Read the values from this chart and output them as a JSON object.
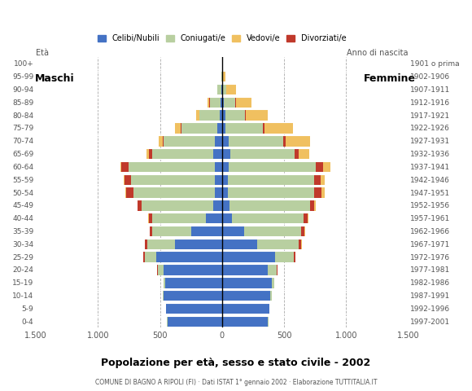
{
  "age_groups": [
    "0-4",
    "5-9",
    "10-14",
    "15-19",
    "20-24",
    "25-29",
    "30-34",
    "35-39",
    "40-44",
    "45-49",
    "50-54",
    "55-59",
    "60-64",
    "65-69",
    "70-74",
    "75-79",
    "80-84",
    "85-89",
    "90-94",
    "95-99",
    "100+"
  ],
  "birth_years": [
    "1997-2001",
    "1992-1996",
    "1987-1991",
    "1982-1986",
    "1977-1981",
    "1972-1976",
    "1967-1971",
    "1962-1966",
    "1957-1961",
    "1952-1956",
    "1947-1951",
    "1942-1946",
    "1937-1941",
    "1932-1936",
    "1927-1931",
    "1922-1926",
    "1917-1921",
    "1912-1916",
    "1907-1911",
    "1902-1906",
    "1901 o prima"
  ],
  "males": {
    "celibe": [
      440,
      450,
      470,
      460,
      470,
      530,
      380,
      250,
      130,
      70,
      55,
      55,
      60,
      70,
      60,
      35,
      20,
      10,
      5,
      0,
      0
    ],
    "coniugato": [
      2,
      3,
      5,
      10,
      50,
      90,
      220,
      310,
      430,
      580,
      660,
      680,
      690,
      490,
      410,
      290,
      160,
      90,
      30,
      5,
      0
    ],
    "vedovo": [
      0,
      0,
      0,
      0,
      1,
      2,
      2,
      2,
      3,
      3,
      5,
      5,
      10,
      20,
      30,
      50,
      25,
      15,
      5,
      0,
      0
    ],
    "divorziato": [
      0,
      0,
      0,
      3,
      5,
      15,
      20,
      20,
      30,
      30,
      60,
      50,
      60,
      30,
      10,
      5,
      5,
      5,
      0,
      0,
      0
    ]
  },
  "females": {
    "nubile": [
      370,
      380,
      390,
      400,
      370,
      430,
      280,
      180,
      80,
      60,
      50,
      45,
      55,
      65,
      55,
      30,
      25,
      15,
      5,
      0,
      0
    ],
    "coniugata": [
      2,
      4,
      8,
      20,
      70,
      150,
      340,
      460,
      580,
      650,
      690,
      700,
      700,
      520,
      440,
      300,
      160,
      90,
      30,
      5,
      0
    ],
    "vedova": [
      0,
      0,
      0,
      1,
      2,
      2,
      3,
      5,
      8,
      15,
      25,
      30,
      60,
      90,
      200,
      230,
      180,
      130,
      80,
      20,
      5
    ],
    "divorziata": [
      0,
      0,
      0,
      2,
      5,
      10,
      20,
      25,
      30,
      30,
      60,
      50,
      60,
      30,
      15,
      10,
      5,
      5,
      0,
      0,
      0
    ]
  },
  "colors": {
    "celibe": "#4472c4",
    "coniugato": "#b8cfa0",
    "vedovo": "#f0c060",
    "divorziato": "#c0392b"
  },
  "xlim": 1500,
  "title": "Popolazione per età, sesso e stato civile - 2002",
  "subtitle": "COMUNE DI BAGNO A RIPOLI (FI) · Dati ISTAT 1° gennaio 2002 · Elaborazione TUTTITALIA.IT",
  "legend_labels": [
    "Celibi/Nubili",
    "Coniugati/e",
    "Vedovi/e",
    "Divorziati/e"
  ],
  "bg_color": "#ffffff",
  "plot_bg": "#ffffff",
  "grid_color": "#aaaaaa",
  "bar_height": 0.85
}
